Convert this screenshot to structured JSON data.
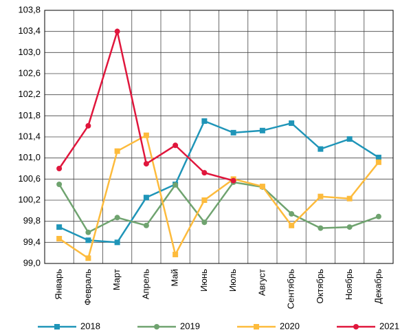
{
  "chart_data": {
    "type": "line",
    "categories": [
      "Январь",
      "Февраль",
      "Март",
      "Апрель",
      "Май",
      "Июнь",
      "Июль",
      "Август",
      "Сентябрь",
      "Октябрь",
      "Ноябрь",
      "Декабрь"
    ],
    "series": [
      {
        "name": "2018",
        "color": "#1f95b8",
        "marker": "square",
        "values": [
          99.69,
          99.44,
          99.4,
          100.25,
          100.5,
          101.7,
          101.48,
          101.52,
          101.66,
          101.17,
          101.36,
          101.01
        ]
      },
      {
        "name": "2019",
        "color": "#6fa36f",
        "marker": "circle",
        "values": [
          100.5,
          99.59,
          99.87,
          99.72,
          100.49,
          99.78,
          100.54,
          100.45,
          99.94,
          99.67,
          99.69,
          99.89
        ]
      },
      {
        "name": "2020",
        "color": "#fdbb3c",
        "marker": "square",
        "values": [
          99.47,
          99.1,
          101.13,
          101.43,
          99.17,
          100.2,
          100.6,
          100.46,
          99.72,
          100.27,
          100.23,
          100.92
        ]
      },
      {
        "name": "2021",
        "color": "#e0163c",
        "marker": "circle",
        "values": [
          100.8,
          101.61,
          103.4,
          100.89,
          101.24,
          100.72,
          100.57,
          null,
          null,
          null,
          null,
          null
        ]
      }
    ],
    "ylim": [
      99.0,
      103.8
    ],
    "yticks": [
      {
        "value": 99.0,
        "label": "99,0"
      },
      {
        "value": 99.4,
        "label": "99,4"
      },
      {
        "value": 99.8,
        "label": "99,8"
      },
      {
        "value": 100.2,
        "label": "100,2"
      },
      {
        "value": 100.6,
        "label": "100,6"
      },
      {
        "value": 101.0,
        "label": "101,0"
      },
      {
        "value": 101.4,
        "label": "101,4"
      },
      {
        "value": 101.8,
        "label": "101,8"
      },
      {
        "value": 102.2,
        "label": "102,2"
      },
      {
        "value": 102.6,
        "label": "102,6"
      },
      {
        "value": 103.0,
        "label": "103,0"
      },
      {
        "value": 103.4,
        "label": "103,4"
      },
      {
        "value": 103.8,
        "label": "103,8"
      }
    ],
    "grid": true,
    "legend": "bottom"
  }
}
